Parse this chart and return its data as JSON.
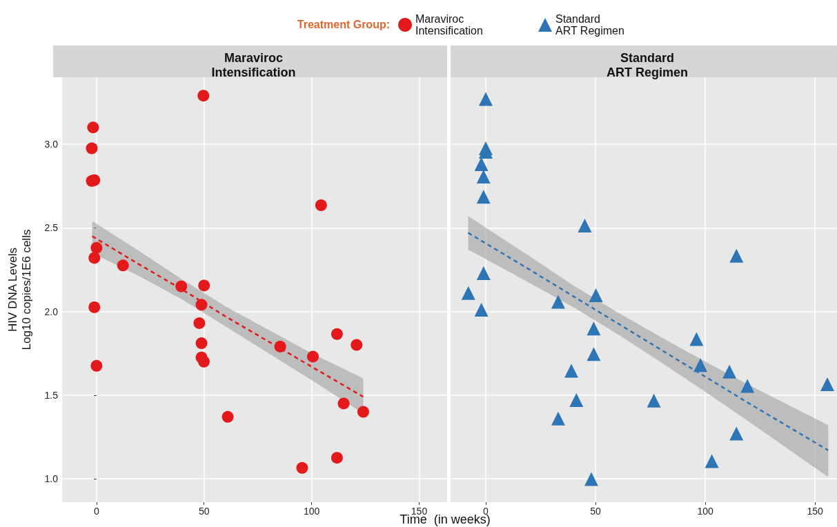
{
  "chart_data": [
    {
      "type": "scatter",
      "title": "Maraviroc\nIntensification",
      "ylabel": "HIV DNA Levels\nLog10 copies/1E6 cells",
      "xlabel": "Time  (in weeks)",
      "legend_title": "Treatment Group:",
      "legend": "top",
      "grid": true,
      "line_style": "dashed",
      "xlim": [
        -16,
        163
      ],
      "xticks": [
        0,
        50,
        100,
        150
      ],
      "ylim": [
        0.86,
        3.4
      ],
      "yticks": [
        {
          "value": 1,
          "label": "1.0"
        },
        {
          "value": 1.5,
          "label": "1.5"
        },
        {
          "value": 2,
          "label": "2.0"
        },
        {
          "value": 2.5,
          "label": "2.5"
        },
        {
          "value": 3,
          "label": "3.0"
        }
      ],
      "series": [
        {
          "name": "Maraviroc\nIntensification",
          "marker": "circle",
          "color": "#e31a1c",
          "x": [
            -1.6,
            -2.2,
            -2.2,
            -1,
            0,
            -1,
            12.3,
            -1,
            0,
            49.7,
            104.4,
            39.4,
            50,
            48.8,
            47.8,
            48.8,
            48.8,
            49.9,
            85.4,
            100.6,
            111.8,
            120.9,
            114.9,
            124,
            61,
            95.6,
            111.8
          ],
          "values": [
            3.1,
            2.975,
            2.78,
            2.785,
            2.38,
            2.32,
            2.275,
            2.025,
            1.675,
            3.29,
            2.635,
            2.15,
            2.155,
            2.04,
            1.93,
            1.81,
            1.725,
            1.7,
            1.79,
            1.73,
            1.865,
            1.8,
            1.45,
            1.4,
            1.37,
            1.065,
            1.125
          ]
        },
        {
          "type": "line",
          "color": "#e31a1c",
          "x": [
            -2,
            20,
            40,
            60,
            80,
            100,
            124
          ],
          "values": [
            2.45,
            2.28,
            2.13,
            1.97,
            1.82,
            1.67,
            1.49
          ],
          "upper": [
            2.54,
            2.36,
            2.19,
            2.03,
            1.89,
            1.75,
            1.6
          ],
          "lower": [
            2.35,
            2.21,
            2.07,
            1.91,
            1.75,
            1.59,
            1.39
          ]
        }
      ]
    },
    {
      "type": "scatter",
      "title": "Standard\nART Regimen",
      "legend": "top",
      "grid": true,
      "line_style": "dashed",
      "tick_labels": "x",
      "xlim": [
        -16,
        160
      ],
      "xticks": [
        0,
        50,
        100,
        150
      ],
      "ylim": [
        0.86,
        3.4
      ],
      "yticks": [
        1,
        1.5,
        2,
        2.5,
        3
      ],
      "series": [
        {
          "name": "Standard\nART Regimen",
          "marker": "triangle",
          "color": "#2e75b6",
          "x": [
            0,
            0,
            0,
            -2,
            -1,
            -1,
            45.1,
            114.2,
            -1,
            -7.9,
            -2,
            33,
            50.2,
            49.2,
            49.2,
            39,
            41.3,
            33,
            48.1,
            76.6,
            96,
            97.8,
            111,
            119.2,
            155.6,
            114.2,
            103
          ],
          "values": [
            3.27,
            2.975,
            2.955,
            2.88,
            2.806,
            2.686,
            2.513,
            2.333,
            2.229,
            2.11,
            2.01,
            2.058,
            2.097,
            1.898,
            1.745,
            1.646,
            1.47,
            1.36,
            0.998,
            1.467,
            1.835,
            1.68,
            1.64,
            1.555,
            1.565,
            1.27,
            1.105
          ]
        },
        {
          "type": "line",
          "color": "#2e75b6",
          "x": [
            -8,
            20,
            40,
            60,
            80,
            100,
            120,
            156
          ],
          "values": [
            2.47,
            2.25,
            2.09,
            1.93,
            1.77,
            1.61,
            1.45,
            1.17
          ],
          "upper": [
            2.57,
            2.33,
            2.155,
            1.995,
            1.845,
            1.7,
            1.56,
            1.32
          ],
          "lower": [
            2.37,
            2.17,
            2.025,
            1.865,
            1.695,
            1.52,
            1.34,
            1.01
          ]
        }
      ]
    }
  ]
}
